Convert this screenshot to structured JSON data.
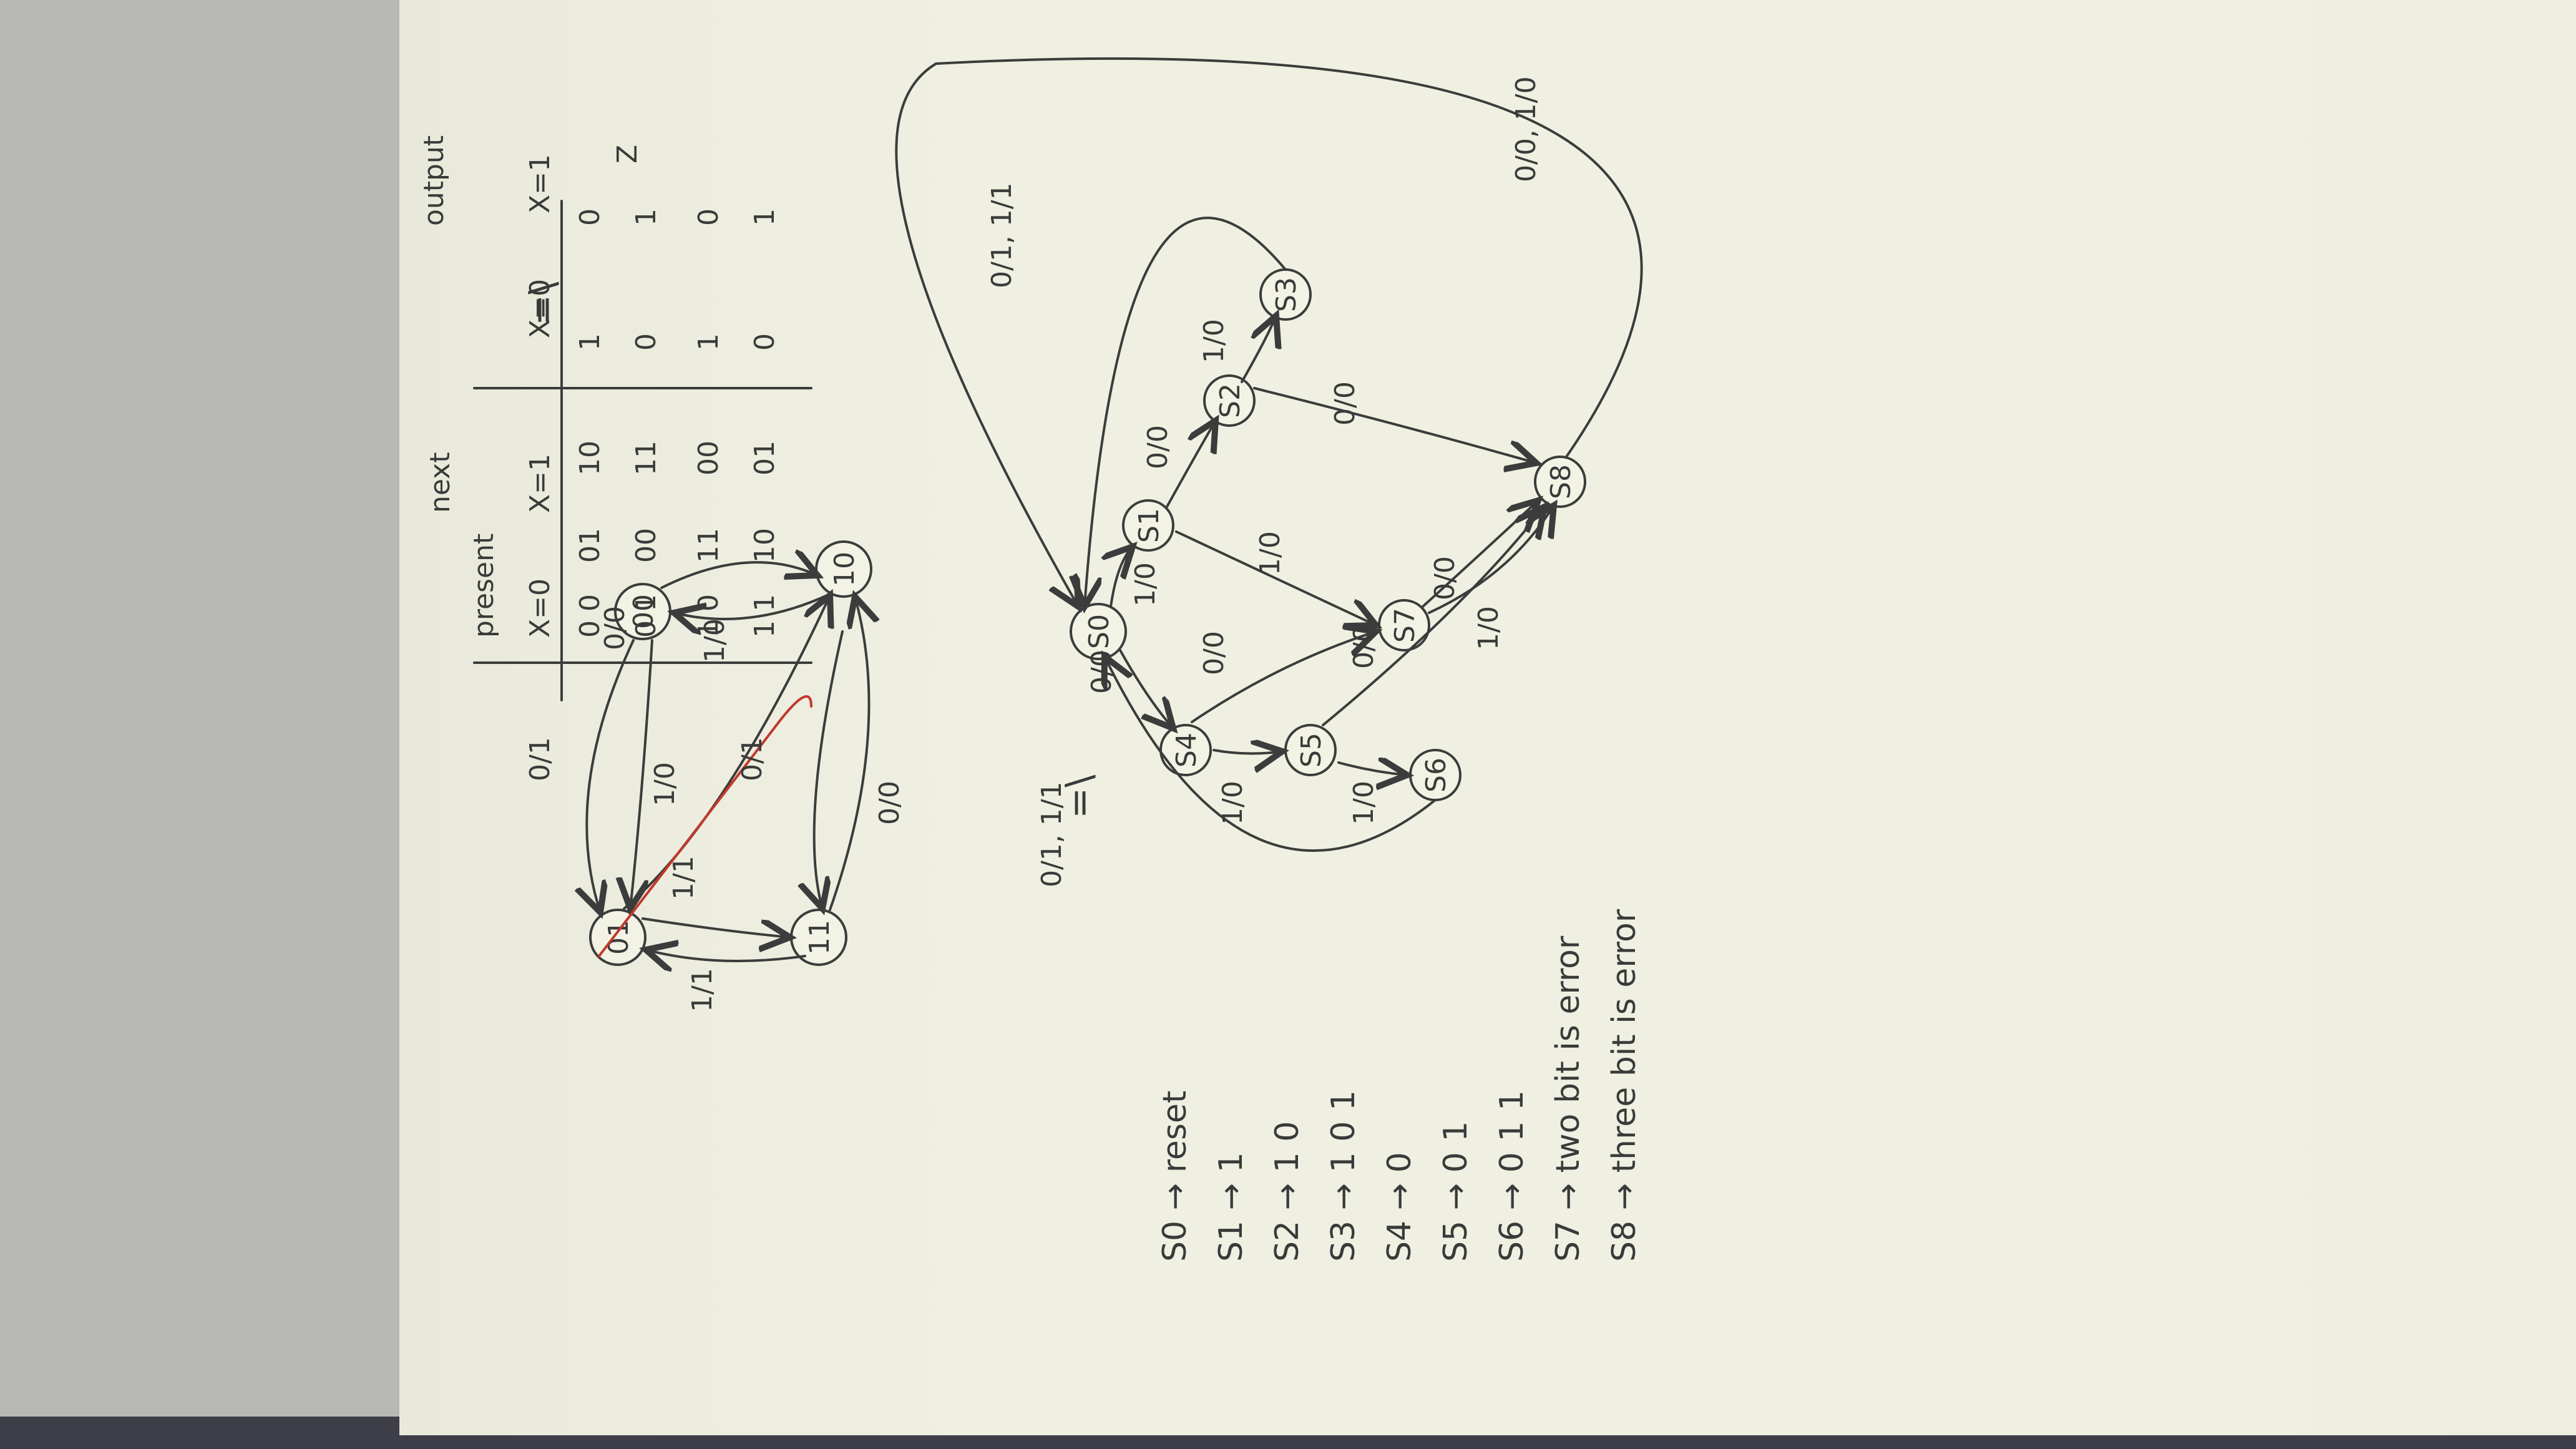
{
  "sections": {
    "one": "=\\",
    "two": "=\\"
  },
  "fsm1": {
    "states": [
      "00",
      "01",
      "10",
      "11"
    ],
    "edge_labels": [
      "1/0",
      "0/1",
      "0/0",
      "1/0",
      "0/1",
      "1/1",
      "1/1",
      "0/0"
    ]
  },
  "table": {
    "group_next": "next",
    "group_output": "output",
    "output_var": "Z",
    "col_present": "present",
    "col_x0": "X=0",
    "col_x1": "X=1",
    "col_z0": "X=0",
    "col_z1": "X=1",
    "rows": [
      {
        "present": "0 0",
        "next0": "01",
        "next1": "10",
        "z0": "1",
        "z1": "0"
      },
      {
        "present": "0 1",
        "next0": "00",
        "next1": "11",
        "z0": "0",
        "z1": "1"
      },
      {
        "present": "1 0",
        "next0": "11",
        "next1": "00",
        "z0": "1",
        "z1": "0"
      },
      {
        "present": "1 1",
        "next0": "10",
        "next1": "01",
        "z0": "0",
        "z1": "1"
      }
    ]
  },
  "fsm2": {
    "states": {
      "s0": "S0",
      "s1": "S1",
      "s2": "S2",
      "s3": "S3",
      "s4": "S4",
      "s5": "S5",
      "s6": "S6",
      "s7": "S7",
      "s8": "S8"
    },
    "edge_labels": {
      "s0_s1": "1/0",
      "s1_s2": "0/0",
      "s2_s3": "1/0",
      "s3_s0": "0/1, 1/1",
      "s0_s4": "0/0",
      "s4_s5": "1/0",
      "s5_s6": "1/0",
      "s6_s0": "0/1, 1/1",
      "s1_s7": "1/0",
      "s4_s7": "0/0",
      "s2_s8": "0/0",
      "s5_s8": "0/0",
      "s7_s8": "0/0",
      "s7_s8b": "1/0",
      "s8_s0": "0/0, 1/0"
    }
  },
  "legend": [
    "S0 → reset",
    "S1 → 1",
    "S2 → 1 0",
    "S3 → 1 0 1",
    "S4 → 0",
    "S5 → 0 1",
    "S6 → 0 1 1",
    "S7 → two bit is error",
    "S8 → three bit is error"
  ]
}
